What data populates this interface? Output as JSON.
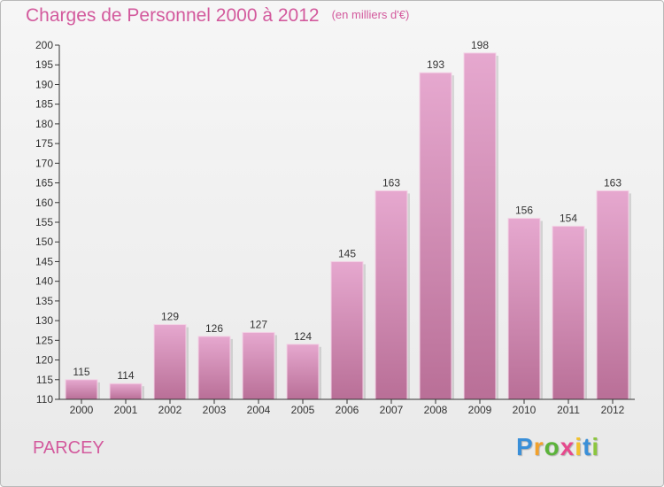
{
  "chart_data": {
    "type": "bar",
    "title": "Charges de Personnel 2000 à 2012",
    "unit_note": "(en milliers d'€)",
    "categories": [
      "2000",
      "2001",
      "2002",
      "2003",
      "2004",
      "2005",
      "2006",
      "2007",
      "2008",
      "2009",
      "2010",
      "2011",
      "2012"
    ],
    "values": [
      115,
      114,
      129,
      126,
      127,
      124,
      145,
      163,
      193,
      198,
      156,
      154,
      163
    ],
    "ylim": [
      110,
      200
    ],
    "yticks": [
      110,
      115,
      120,
      125,
      130,
      135,
      140,
      145,
      150,
      155,
      160,
      165,
      170,
      175,
      180,
      185,
      190,
      195,
      200
    ],
    "grid": false,
    "bar_color_top": "#e6a8cf",
    "bar_color_bottom": "#b96f97"
  },
  "location": "PARCEY",
  "logo": {
    "letters": [
      "P",
      "r",
      "o",
      "x",
      "i",
      "t",
      "i"
    ],
    "colors": [
      "#3a8fd8",
      "#f2a12c",
      "#5bb33a",
      "#e64a8d",
      "#f2c12c",
      "#3a8fd8",
      "#8cc63f"
    ]
  }
}
